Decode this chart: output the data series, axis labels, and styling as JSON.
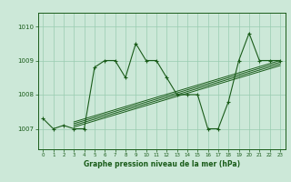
{
  "title": "Graphe pression niveau de la mer (hPa)",
  "bg_color": "#cce8d8",
  "grid_color": "#99ccb0",
  "line_color": "#1a5c1a",
  "ylabel_ticks": [
    1007,
    1008,
    1009,
    1010
  ],
  "xticks": [
    0,
    1,
    2,
    3,
    4,
    5,
    6,
    7,
    8,
    9,
    10,
    11,
    12,
    13,
    14,
    15,
    16,
    17,
    18,
    19,
    20,
    21,
    22,
    23
  ],
  "xlim": [
    -0.5,
    23.5
  ],
  "ylim": [
    1006.4,
    1010.4
  ],
  "main_data": [
    [
      0,
      1007.3
    ],
    [
      1,
      1007.0
    ],
    [
      2,
      1007.1
    ],
    [
      3,
      1007.0
    ],
    [
      4,
      1007.0
    ],
    [
      5,
      1008.8
    ],
    [
      6,
      1009.0
    ],
    [
      7,
      1009.0
    ],
    [
      8,
      1008.5
    ],
    [
      9,
      1009.5
    ],
    [
      10,
      1009.0
    ],
    [
      11,
      1009.0
    ],
    [
      12,
      1008.5
    ],
    [
      13,
      1008.0
    ],
    [
      14,
      1008.0
    ],
    [
      15,
      1008.0
    ],
    [
      16,
      1007.0
    ],
    [
      17,
      1007.0
    ],
    [
      18,
      1007.8
    ],
    [
      19,
      1009.0
    ],
    [
      20,
      1009.8
    ],
    [
      21,
      1009.0
    ],
    [
      22,
      1009.0
    ],
    [
      23,
      1009.0
    ]
  ],
  "trend_lines": [
    [
      [
        3,
        1007.05
      ],
      [
        23,
        1008.85
      ]
    ],
    [
      [
        3,
        1007.1
      ],
      [
        23,
        1008.9
      ]
    ],
    [
      [
        3,
        1007.15
      ],
      [
        23,
        1008.95
      ]
    ],
    [
      [
        3,
        1007.2
      ],
      [
        23,
        1009.0
      ]
    ]
  ]
}
